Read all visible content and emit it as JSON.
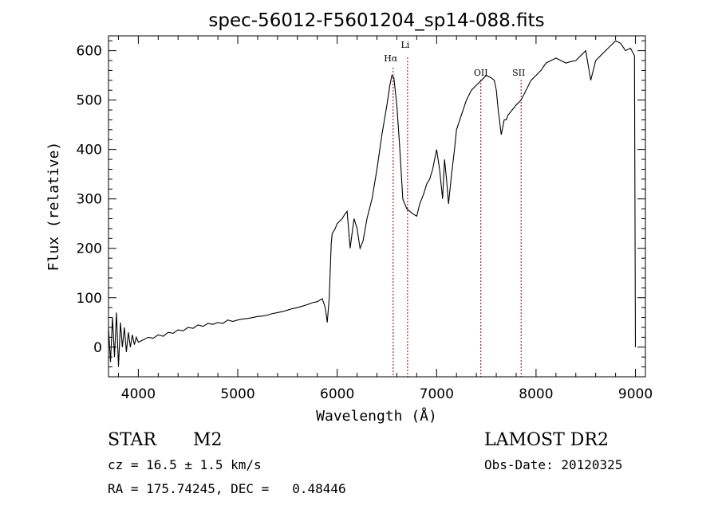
{
  "chart_data": {
    "type": "line",
    "title": "spec-56012-F5601204_sp14-088.fits",
    "xlabel": "Wavelength (Å)",
    "ylabel": "Flux (relative)",
    "xlim": [
      3700,
      9100
    ],
    "ylim": [
      -60,
      630
    ],
    "xticks": [
      4000,
      5000,
      6000,
      7000,
      8000,
      9000
    ],
    "yticks": [
      0,
      100,
      200,
      300,
      400,
      500,
      600
    ],
    "grid": false,
    "line_color": "#000000",
    "marker_color": "#8b0000",
    "spectral_lines": [
      {
        "label": "Hα",
        "x": 6563
      },
      {
        "label": "Li",
        "x": 6708
      },
      {
        "label": "OII",
        "x": 7445
      },
      {
        "label": "SII",
        "x": 7850
      }
    ],
    "series": [
      {
        "x": [
          3700,
          3720,
          3740,
          3760,
          3780,
          3800,
          3820,
          3840,
          3860,
          3880,
          3900,
          3920,
          3940,
          3960,
          3980,
          4000,
          4050,
          4100,
          4150,
          4200,
          4250,
          4300,
          4350,
          4400,
          4450,
          4500,
          4550,
          4600,
          4650,
          4700,
          4750,
          4800,
          4850,
          4900,
          4950,
          5000,
          5050,
          5100,
          5150,
          5200,
          5250,
          5300,
          5350,
          5400,
          5450,
          5500,
          5550,
          5600,
          5650,
          5700,
          5750,
          5800,
          5850,
          5880,
          5900,
          5920,
          5940,
          5950,
          5980,
          6000,
          6050,
          6080,
          6100,
          6130,
          6150,
          6170,
          6200,
          6230,
          6260,
          6300,
          6350,
          6400,
          6450,
          6500,
          6530,
          6550,
          6570,
          6600,
          6630,
          6660,
          6700,
          6730,
          6760,
          6800,
          6830,
          6870,
          6900,
          6930,
          6960,
          7000,
          7030,
          7060,
          7080,
          7100,
          7120,
          7150,
          7180,
          7200,
          7250,
          7300,
          7350,
          7400,
          7450,
          7500,
          7550,
          7580,
          7600,
          7620,
          7650,
          7680,
          7700,
          7720,
          7760,
          7800,
          7850,
          7900,
          7950,
          8000,
          8050,
          8100,
          8150,
          8200,
          8250,
          8300,
          8350,
          8400,
          8450,
          8500,
          8550,
          8600,
          8650,
          8700,
          8750,
          8800,
          8850,
          8900,
          8950,
          8990,
          9000
        ],
        "values": [
          40,
          -30,
          60,
          -20,
          70,
          -40,
          50,
          0,
          40,
          -10,
          30,
          0,
          25,
          5,
          20,
          10,
          15,
          20,
          18,
          25,
          22,
          30,
          28,
          35,
          33,
          40,
          38,
          45,
          42,
          48,
          46,
          50,
          48,
          55,
          52,
          55,
          57,
          58,
          60,
          62,
          63,
          65,
          68,
          70,
          72,
          75,
          78,
          80,
          83,
          86,
          90,
          92,
          98,
          80,
          50,
          100,
          210,
          230,
          240,
          250,
          260,
          270,
          275,
          200,
          230,
          260,
          240,
          200,
          215,
          260,
          300,
          360,
          430,
          490,
          530,
          550,
          545,
          490,
          400,
          300,
          280,
          275,
          270,
          265,
          290,
          310,
          330,
          340,
          360,
          400,
          360,
          300,
          380,
          340,
          290,
          350,
          400,
          440,
          470,
          500,
          520,
          530,
          540,
          550,
          545,
          540,
          520,
          480,
          430,
          460,
          460,
          470,
          480,
          490,
          500,
          520,
          540,
          550,
          560,
          575,
          580,
          585,
          580,
          575,
          578,
          580,
          590,
          600,
          540,
          580,
          590,
          600,
          610,
          620,
          615,
          600,
          605,
          590,
          0
        ]
      }
    ]
  },
  "info": {
    "object_class": "STAR",
    "subclass": "M2",
    "redshift_line": "cz = 16.5 ± 1.5 km/s",
    "coords_line": "RA = 175.74245, DEC =   0.48446",
    "survey": "LAMOST DR2",
    "obs_date": "Obs-Date: 20120325"
  }
}
